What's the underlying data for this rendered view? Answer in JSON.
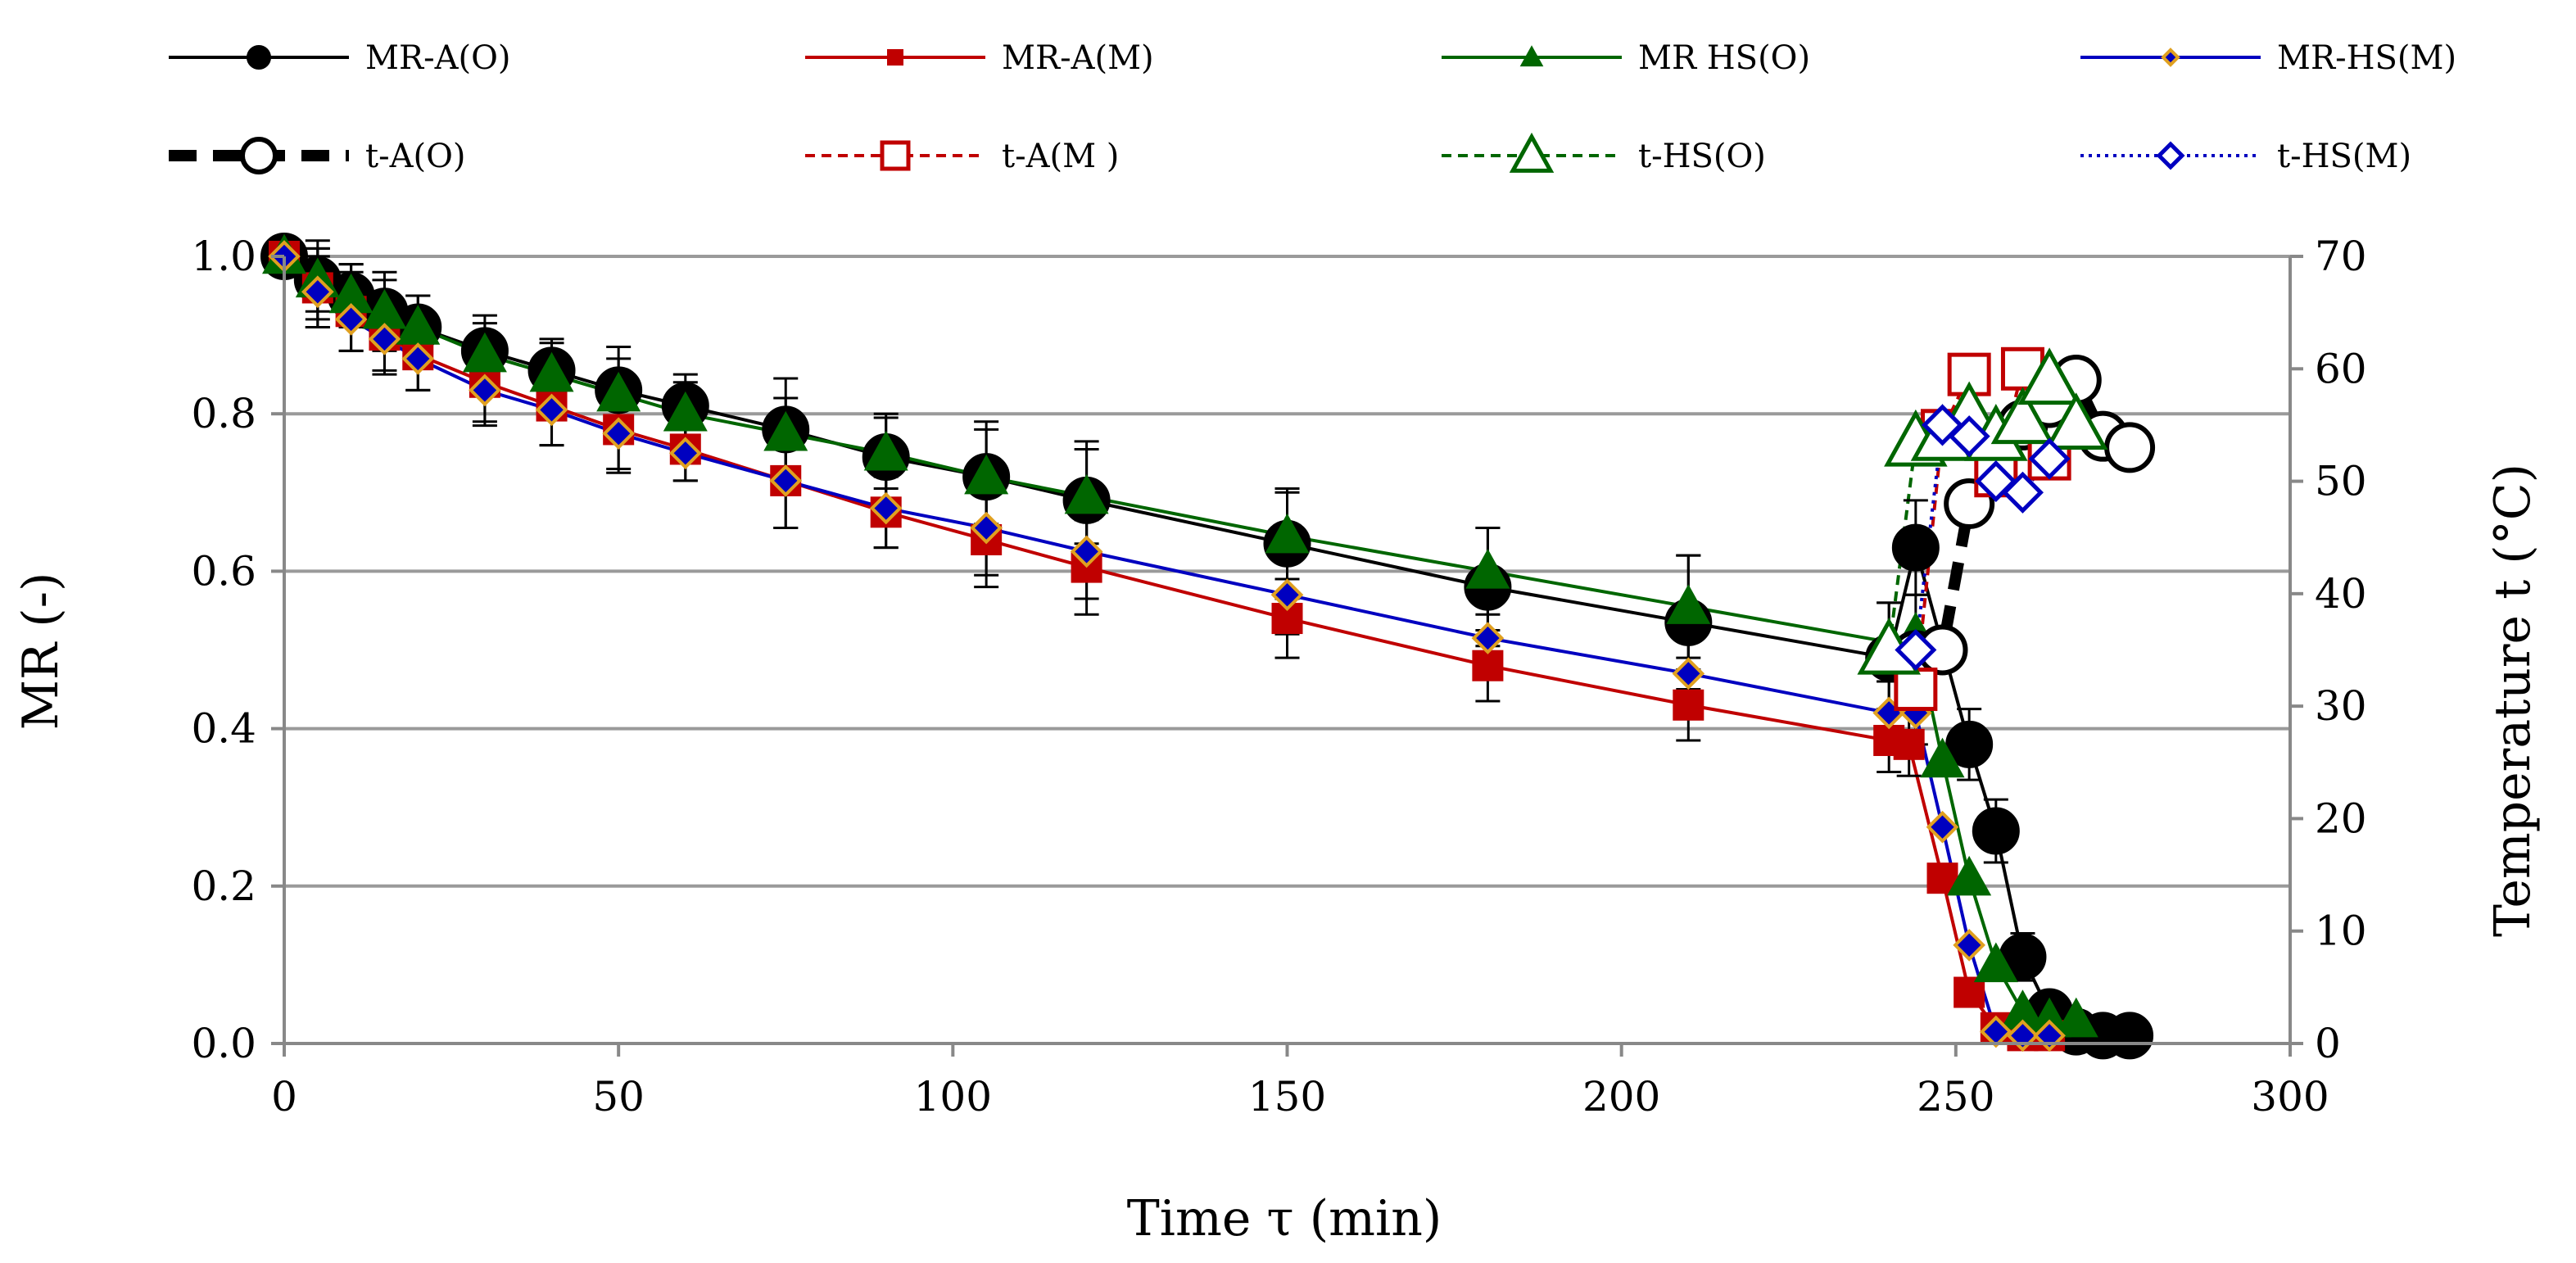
{
  "chart_data": {
    "type": "scatter",
    "title": "",
    "xlabel": "Time τ (min)",
    "ylabel": "MR (-)",
    "y2label": "Temperature t (°C)",
    "xlim": [
      0,
      300
    ],
    "ylim": [
      0,
      1.0
    ],
    "y2lim": [
      0,
      70
    ],
    "xticks": [
      "0",
      "50",
      "100",
      "150",
      "200",
      "250",
      "300"
    ],
    "yticks": [
      "0.0",
      "0.2",
      "0.4",
      "0.6",
      "0.8",
      "1.0"
    ],
    "y2ticks": [
      "0",
      "10",
      "20",
      "30",
      "40",
      "50",
      "60",
      "70"
    ],
    "grid": true,
    "legend_position": "top",
    "series": [
      {
        "name": "MR-A(O)",
        "axis": "left",
        "color": "#000000",
        "marker": "circle",
        "filled": true,
        "line": "solid",
        "x": [
          0,
          5,
          10,
          15,
          20,
          30,
          40,
          50,
          60,
          75,
          90,
          105,
          120,
          150,
          180,
          210,
          240,
          244,
          252,
          256,
          260,
          264,
          268,
          272,
          276
        ],
        "y": [
          1.0,
          0.97,
          0.95,
          0.93,
          0.91,
          0.88,
          0.855,
          0.83,
          0.81,
          0.78,
          0.745,
          0.72,
          0.69,
          0.635,
          0.58,
          0.535,
          0.49,
          0.63,
          0.38,
          0.27,
          0.11,
          0.04,
          0.015,
          0.01,
          0.01
        ],
        "err": [
          0,
          0.05,
          0.04,
          0.05,
          0.04,
          0.045,
          0.04,
          0.055,
          0.04,
          0.065,
          0.055,
          0.07,
          0.075,
          0.07,
          0.075,
          0.085,
          0.07,
          0.06,
          0.045,
          0.04,
          0.03,
          0,
          0,
          0,
          0
        ]
      },
      {
        "name": "MR-A(M)",
        "axis": "left",
        "color": "#c00000",
        "marker": "square",
        "filled": true,
        "line": "solid",
        "x": [
          0,
          5,
          10,
          15,
          20,
          30,
          40,
          50,
          60,
          75,
          90,
          105,
          120,
          150,
          180,
          210,
          240,
          243,
          248,
          252,
          256,
          260,
          264
        ],
        "y": [
          1.0,
          0.96,
          0.93,
          0.9,
          0.875,
          0.84,
          0.81,
          0.78,
          0.755,
          0.715,
          0.675,
          0.64,
          0.605,
          0.54,
          0.48,
          0.43,
          0.385,
          0.38,
          0.21,
          0.065,
          0.02,
          0.01,
          0.01
        ],
        "err": [
          0,
          0.05,
          0.05,
          0.045,
          0.045,
          0.05,
          0.05,
          0.055,
          0.04,
          0.06,
          0.045,
          0.06,
          0.06,
          0.05,
          0.045,
          0.045,
          0.04,
          0.04,
          0,
          0,
          0,
          0,
          0
        ]
      },
      {
        "name": "MR HS(O)",
        "axis": "left",
        "color": "#006600",
        "marker": "triangle",
        "filled": true,
        "line": "solid",
        "x": [
          0,
          5,
          10,
          15,
          20,
          30,
          40,
          50,
          60,
          75,
          90,
          105,
          120,
          150,
          180,
          210,
          240,
          244,
          248,
          252,
          256,
          260,
          264,
          268
        ],
        "y": [
          1.0,
          0.97,
          0.95,
          0.93,
          0.91,
          0.875,
          0.85,
          0.825,
          0.8,
          0.775,
          0.75,
          0.72,
          0.695,
          0.645,
          0.6,
          0.555,
          0.51,
          0.52,
          0.36,
          0.21,
          0.1,
          0.04,
          0.03,
          0.03
        ],
        "err": [
          0,
          0.04,
          0.04,
          0.04,
          0.04,
          0.04,
          0.04,
          0.045,
          0.04,
          0.045,
          0.045,
          0.06,
          0.06,
          0.055,
          0.055,
          0.065,
          0.05,
          0.05,
          0,
          0,
          0,
          0,
          0,
          0
        ]
      },
      {
        "name": "MR-HS(M)",
        "axis": "left",
        "color": "#0000c0",
        "marker": "diamond",
        "filled": true,
        "line": "solid",
        "x": [
          0,
          5,
          10,
          15,
          20,
          30,
          40,
          50,
          60,
          75,
          90,
          105,
          120,
          150,
          180,
          210,
          240,
          244,
          248,
          252,
          256,
          260,
          264
        ],
        "y": [
          1.0,
          0.955,
          0.92,
          0.895,
          0.87,
          0.83,
          0.805,
          0.775,
          0.75,
          0.715,
          0.68,
          0.655,
          0.625,
          0.57,
          0.515,
          0.47,
          0.42,
          0.42,
          0.275,
          0.125,
          0.015,
          0.01,
          0.01
        ],
        "err": [
          0,
          0.045,
          0.04,
          0.045,
          0.04,
          0.045,
          0.045,
          0.045,
          0.035,
          0.06,
          0.05,
          0.06,
          0.06,
          0.05,
          0.045,
          0.045,
          0.04,
          0.04,
          0,
          0,
          0,
          0,
          0
        ]
      },
      {
        "name": "t-A(O)",
        "axis": "right",
        "color": "#000000",
        "marker": "circle",
        "filled": false,
        "line": "thick-dash",
        "x": [
          244,
          248,
          252,
          256,
          260,
          264,
          268,
          272,
          276
        ],
        "y": [
          34.5,
          35,
          48,
          53,
          55,
          57,
          59,
          54,
          53
        ]
      },
      {
        "name": "t-A(M )",
        "axis": "right",
        "color": "#c00000",
        "marker": "square",
        "filled": false,
        "line": "dash",
        "x": [
          244,
          248,
          252,
          256,
          260,
          264
        ],
        "y": [
          31.5,
          54.5,
          59.5,
          50.5,
          60,
          52
        ]
      },
      {
        "name": "t-HS(O)",
        "axis": "right",
        "color": "#006600",
        "marker": "triangle",
        "filled": false,
        "line": "dash",
        "x": [
          240,
          244,
          248,
          252,
          256,
          260,
          264,
          268
        ],
        "y": [
          35,
          53.5,
          54,
          56,
          54,
          55.5,
          59,
          55
        ]
      },
      {
        "name": "t-HS(M)",
        "axis": "right",
        "color": "#0000c0",
        "marker": "diamond",
        "filled": false,
        "line": "dot",
        "x": [
          244,
          248,
          252,
          256,
          260,
          264
        ],
        "y": [
          35,
          55,
          54,
          50,
          49,
          52
        ]
      }
    ]
  }
}
